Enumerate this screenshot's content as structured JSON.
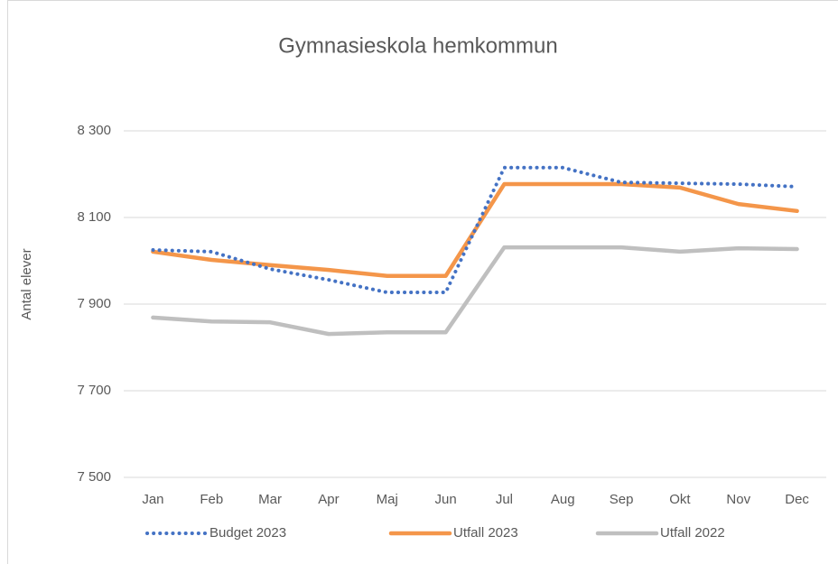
{
  "chart_data": {
    "type": "line",
    "title": "Gymnasieskola hemkommun",
    "ylabel": "Antal elever",
    "categories": [
      "Jan",
      "Feb",
      "Mar",
      "Apr",
      "Maj",
      "Jun",
      "Jul",
      "Aug",
      "Sep",
      "Okt",
      "Nov",
      "Dec"
    ],
    "series": [
      {
        "name": "Budget 2023",
        "color": "#4472c4",
        "dash": "dotted",
        "values": [
          8025,
          8021,
          7981,
          7956,
          7927,
          7927,
          8215,
          8215,
          8181,
          8179,
          8177,
          8171
        ]
      },
      {
        "name": "Utfall 2023",
        "color": "#f4964a",
        "values": [
          8021,
          8002,
          7990,
          7979,
          7965,
          7965,
          8177,
          8177,
          8177,
          8169,
          8131,
          8115
        ]
      },
      {
        "name": "Utfall 2022",
        "color": "#bfbfbf",
        "values": [
          7869,
          7860,
          7858,
          7831,
          7835,
          7835,
          8031,
          8031,
          8031,
          8021,
          8029,
          8027
        ]
      }
    ],
    "ylim": [
      7500,
      8300
    ],
    "yticks": [
      {
        "value": 7500,
        "label": "7 500"
      },
      {
        "value": 7700,
        "label": "7 700"
      },
      {
        "value": 7900,
        "label": "7 900"
      },
      {
        "value": 8100,
        "label": "8 100"
      },
      {
        "value": 8300,
        "label": "8 300"
      }
    ],
    "grid": true,
    "legend": "bottom"
  }
}
